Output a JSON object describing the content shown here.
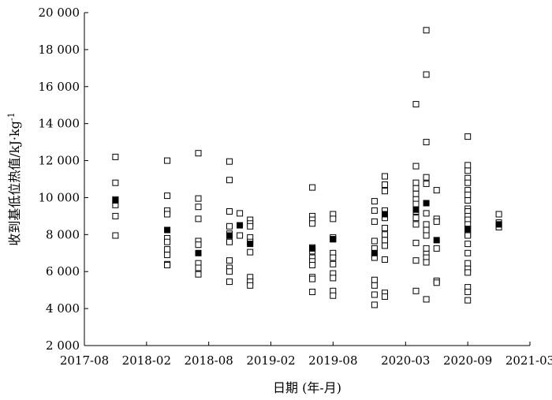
{
  "chart_data": {
    "type": "scatter",
    "title": "",
    "xlabel": "日期 (年-月)",
    "ylabel": "收到基低位热值/kJ·kg",
    "ylabel_superscript": "-1",
    "xlim": [
      "2017-08",
      "2021-03"
    ],
    "ylim": [
      2000,
      20000
    ],
    "x_ticks": [
      {
        "date": "2017-08",
        "label": "2017-08"
      },
      {
        "date": "2018-02",
        "label": "2018-02"
      },
      {
        "date": "2018-08",
        "label": "2018-08"
      },
      {
        "date": "2019-02",
        "label": "2019-02"
      },
      {
        "date": "2019-08",
        "label": "2019-08"
      },
      {
        "date": "2020-03",
        "label": "2020-03"
      },
      {
        "date": "2020-09",
        "label": "2020-09"
      },
      {
        "date": "2021-03",
        "label": "2021-03"
      }
    ],
    "y_ticks": [
      {
        "value": 2000,
        "label": "2 000"
      },
      {
        "value": 4000,
        "label": "4 000"
      },
      {
        "value": 6000,
        "label": "6 000"
      },
      {
        "value": 8000,
        "label": "8 000"
      },
      {
        "value": 10000,
        "label": "10 000"
      },
      {
        "value": 12000,
        "label": "12 000"
      },
      {
        "value": 14000,
        "label": "14 000"
      },
      {
        "value": 16000,
        "label": "16 000"
      },
      {
        "value": 18000,
        "label": "18 000"
      },
      {
        "value": 20000,
        "label": "20 000"
      }
    ],
    "grid": false,
    "series": [
      {
        "marker": "open-square",
        "groups": [
          {
            "date": "2017-11",
            "values": [
              12200,
              10800,
              9900,
              9600,
              9000,
              7950
            ]
          },
          {
            "date": "2018-04",
            "values": [
              12000,
              10100,
              9300,
              9100,
              7800,
              7600,
              7200,
              6900,
              6400,
              6350
            ]
          },
          {
            "date": "2018-07",
            "values": [
              12400,
              9950,
              9500,
              8850,
              7650,
              7450,
              6450,
              6200,
              5850
            ]
          },
          {
            "date": "2018-10",
            "values": [
              11950,
              10950,
              9250,
              8450,
              8050,
              7600,
              6600,
              6200,
              6000,
              5450
            ]
          },
          {
            "date": "2018-11",
            "values": [
              9150,
              7950
            ]
          },
          {
            "date": "2018-12",
            "values": [
              8800,
              8600,
              8450,
              7850,
              7600,
              7050,
              5700,
              5450,
              5250
            ]
          },
          {
            "date": "2019-06",
            "values": [
              10550,
              9000,
              8800,
              8600,
              7300,
              7100,
              6750,
              6550,
              6350,
              5700,
              5600,
              4900
            ]
          },
          {
            "date": "2019-08",
            "values": [
              9100,
              8850,
              7850,
              7750,
              7000,
              6750,
              6400,
              5900,
              5650,
              4950,
              4700
            ]
          },
          {
            "date": "2019-12",
            "values": [
              9800,
              9300,
              8700,
              7650,
              7250,
              6900,
              6750,
              5550,
              5250,
              4750,
              4200
            ]
          },
          {
            "date": "2020-01",
            "values": [
              11150,
              10700,
              10350,
              9300,
              8900,
              8350,
              8000,
              7700,
              7400,
              6650,
              4850,
              4650
            ]
          },
          {
            "date": "2020-04",
            "values": [
              15050,
              11700,
              10800,
              10500,
              10200,
              9900,
              9650,
              9250,
              8900,
              8550,
              7550,
              6600,
              4950
            ]
          },
          {
            "date": "2020-05",
            "values": [
              19050,
              16650,
              13000,
              11100,
              10750,
              9150,
              8550,
              8250,
              7950,
              7250,
              6950,
              6750,
              6500,
              4500
            ]
          },
          {
            "date": "2020-06",
            "values": [
              10400,
              8850,
              8700,
              7250,
              5500,
              5400
            ]
          },
          {
            "date": "2020-09",
            "values": [
              13300,
              11750,
              11450,
              11050,
              10800,
              10400,
              10150,
              9850,
              9400,
              9250,
              9000,
              8800,
              8550,
              8300,
              8000,
              7950,
              7500,
              7000,
              6450,
              6150,
              5950,
              5150,
              4900,
              4450
            ]
          },
          {
            "date": "2020-12",
            "values": [
              9100,
              8650,
              8400
            ]
          }
        ]
      },
      {
        "marker": "filled-square",
        "groups": [
          {
            "date": "2017-11",
            "values": [
              9850
            ]
          },
          {
            "date": "2018-04",
            "values": [
              8250
            ]
          },
          {
            "date": "2018-07",
            "values": [
              7000
            ]
          },
          {
            "date": "2018-10",
            "values": [
              7950
            ]
          },
          {
            "date": "2018-11",
            "values": [
              8500
            ]
          },
          {
            "date": "2018-12",
            "values": [
              7500
            ]
          },
          {
            "date": "2019-06",
            "values": [
              7250
            ]
          },
          {
            "date": "2019-08",
            "values": [
              7750
            ]
          },
          {
            "date": "2019-12",
            "values": [
              7000
            ]
          },
          {
            "date": "2020-01",
            "values": [
              9100
            ]
          },
          {
            "date": "2020-04",
            "values": [
              9350
            ]
          },
          {
            "date": "2020-05",
            "values": [
              9700
            ]
          },
          {
            "date": "2020-06",
            "values": [
              7700
            ]
          },
          {
            "date": "2020-09",
            "values": [
              8300
            ]
          },
          {
            "date": "2020-12",
            "values": [
              8550
            ]
          }
        ]
      }
    ]
  }
}
